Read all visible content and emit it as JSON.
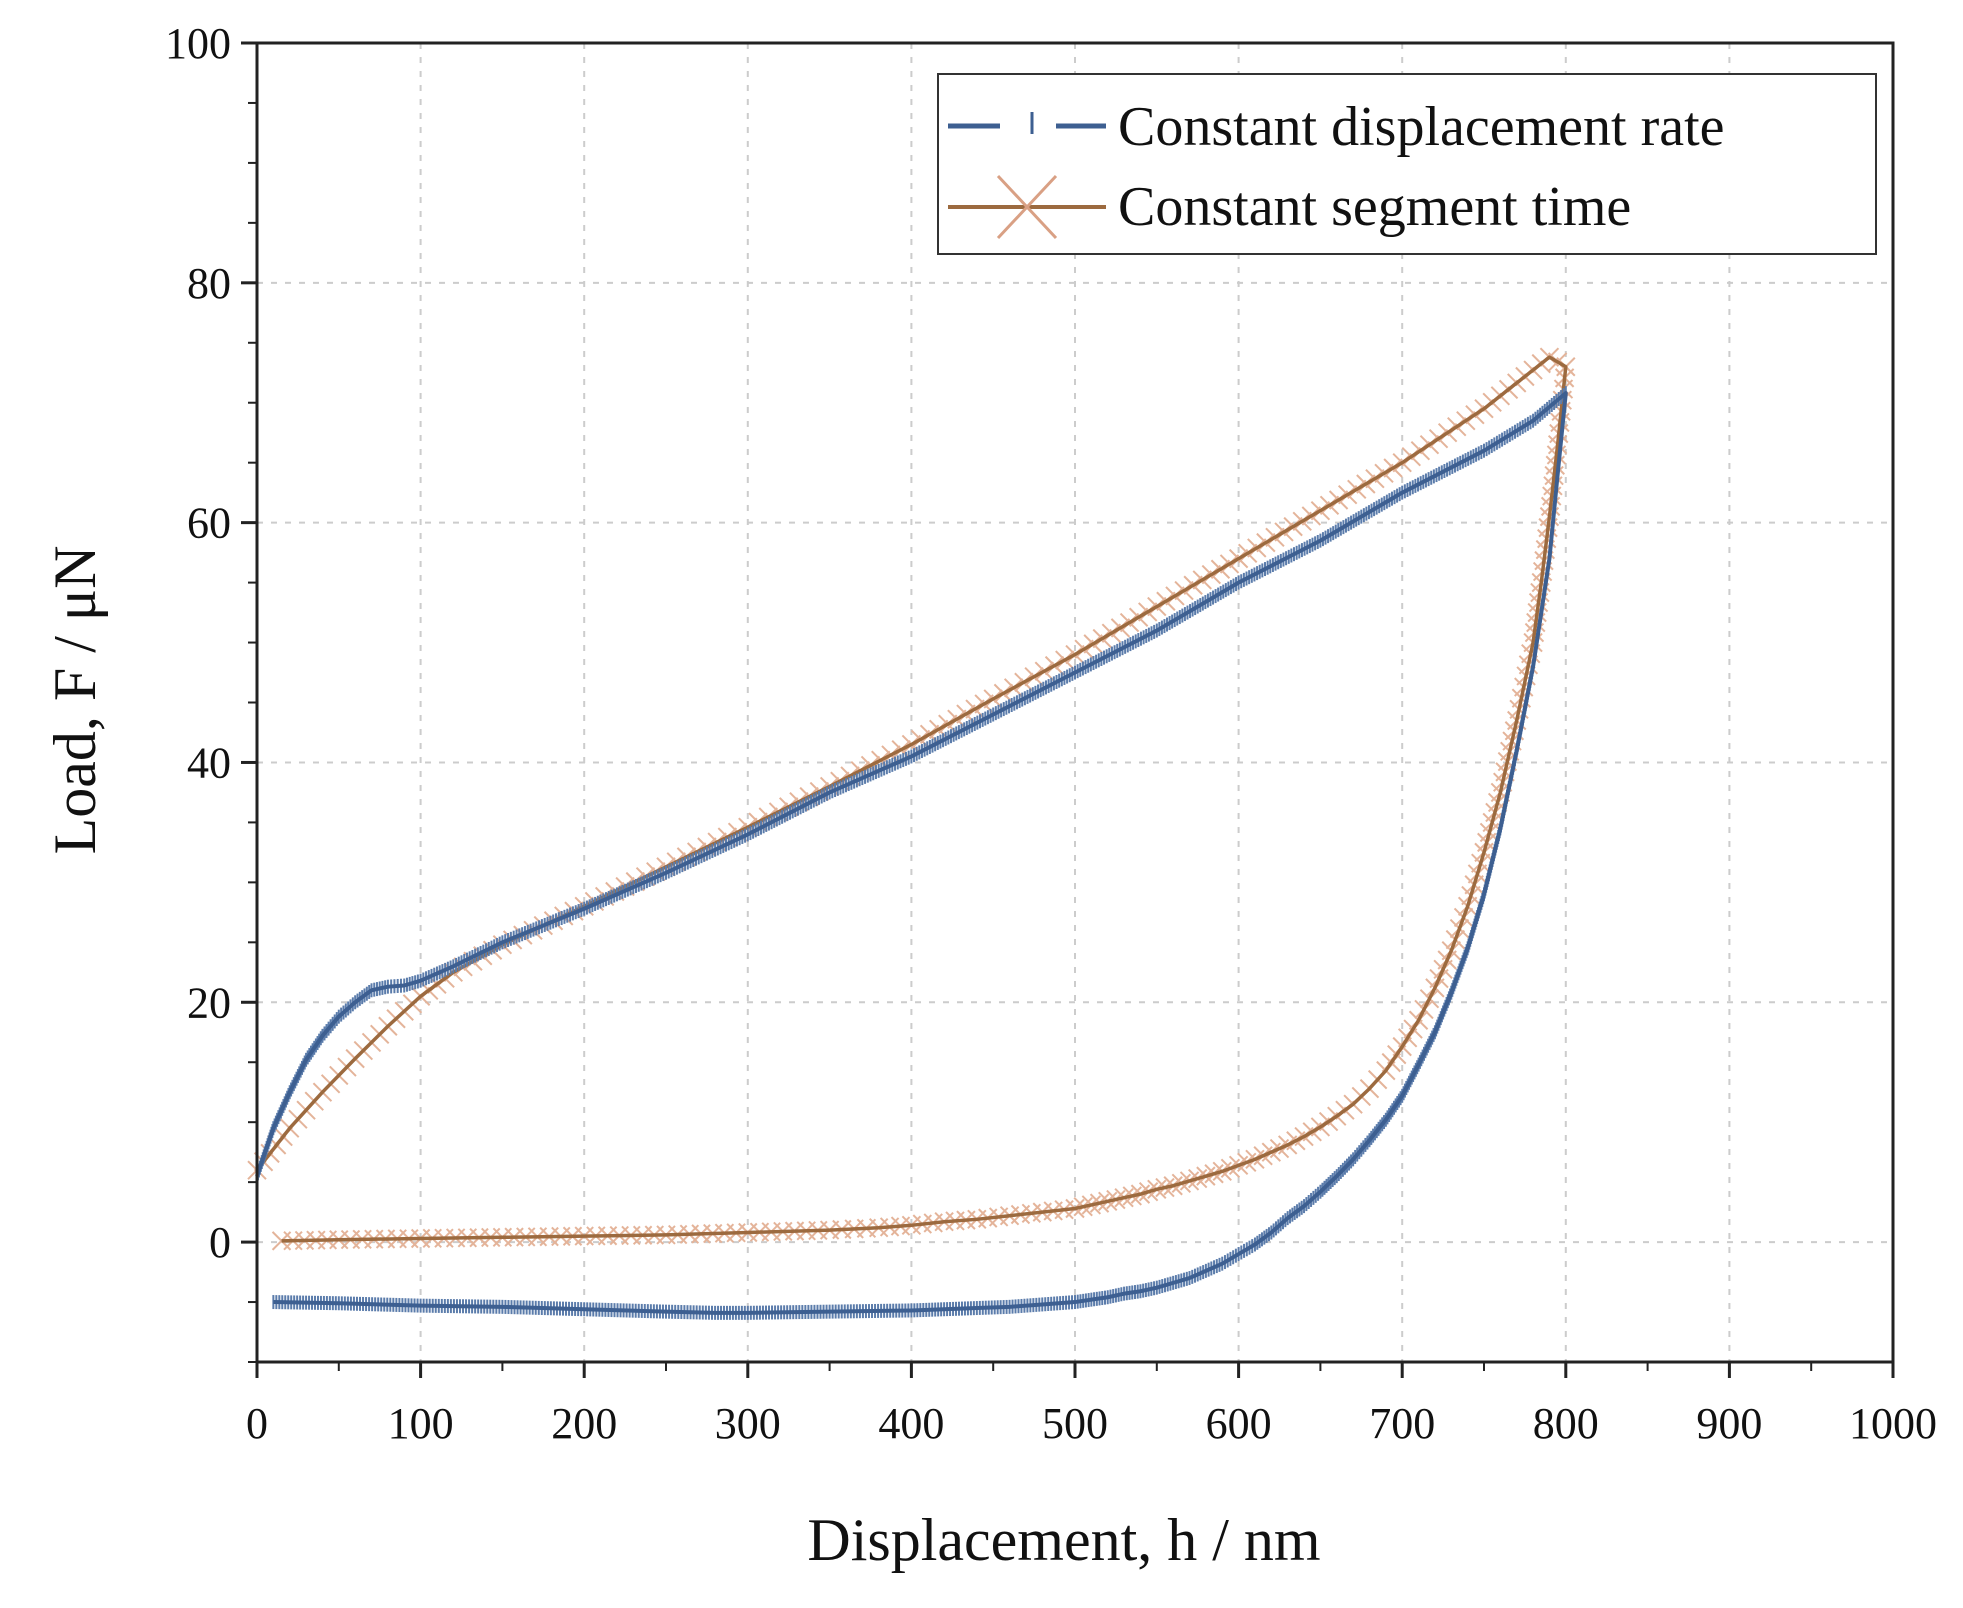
{
  "chart_data": {
    "type": "line",
    "title": "",
    "xlabel": "Displacement, h / nm",
    "ylabel": "Load, F / μN",
    "xlim": [
      0,
      1000
    ],
    "ylim": [
      -10,
      100
    ],
    "xticks": [
      0,
      100,
      200,
      300,
      400,
      500,
      600,
      700,
      800,
      900,
      1000
    ],
    "yticks": [
      0,
      20,
      40,
      60,
      80,
      100
    ],
    "grid": true,
    "legend_position": "top-right",
    "series": [
      {
        "name": "Constant displacement rate",
        "color": "#3d5f91",
        "marker": "dash",
        "x": [
          0,
          10,
          20,
          30,
          40,
          50,
          60,
          70,
          80,
          90,
          100,
          120,
          150,
          200,
          250,
          300,
          350,
          400,
          450,
          500,
          550,
          600,
          650,
          700,
          750,
          780,
          800,
          795,
          790,
          780,
          770,
          760,
          750,
          740,
          730,
          720,
          710,
          700,
          690,
          680,
          670,
          660,
          650,
          640,
          630,
          620,
          610,
          600,
          590,
          580,
          570,
          560,
          550,
          540,
          530,
          520,
          510,
          500,
          480,
          460,
          440,
          420,
          400,
          350,
          300,
          280,
          250,
          200,
          150,
          100,
          50,
          10
        ],
        "y": [
          5.5,
          9.5,
          12.5,
          15.2,
          17.2,
          18.8,
          20.0,
          21.0,
          21.3,
          21.4,
          21.8,
          23.0,
          25.0,
          27.8,
          30.8,
          34.0,
          37.5,
          40.5,
          44.0,
          47.5,
          51.0,
          55.0,
          58.5,
          62.5,
          66.0,
          68.5,
          70.8,
          64.0,
          57.0,
          48.0,
          41.0,
          34.5,
          29.0,
          24.5,
          20.8,
          17.5,
          14.8,
          12.2,
          10.2,
          8.5,
          6.9,
          5.5,
          4.2,
          3.0,
          2.0,
          0.8,
          -0.2,
          -1.0,
          -1.8,
          -2.4,
          -3.0,
          -3.4,
          -3.8,
          -4.1,
          -4.3,
          -4.6,
          -4.8,
          -5.0,
          -5.2,
          -5.4,
          -5.5,
          -5.6,
          -5.7,
          -5.8,
          -5.9,
          -5.9,
          -5.8,
          -5.6,
          -5.4,
          -5.3,
          -5.1,
          -5.0
        ]
      },
      {
        "name": "Constant segment time",
        "color": "#9c6a3f",
        "marker": "x",
        "x": [
          0,
          20,
          40,
          60,
          80,
          100,
          120,
          150,
          200,
          250,
          300,
          350,
          400,
          450,
          500,
          550,
          600,
          650,
          700,
          750,
          790,
          800,
          795,
          790,
          785,
          780,
          770,
          760,
          750,
          740,
          730,
          720,
          710,
          700,
          690,
          680,
          670,
          660,
          650,
          640,
          630,
          620,
          610,
          600,
          590,
          580,
          570,
          560,
          550,
          540,
          530,
          520,
          510,
          500,
          480,
          460,
          440,
          420,
          400,
          380,
          350,
          300,
          250,
          200,
          150,
          100,
          50,
          15
        ],
        "y": [
          6.0,
          9.5,
          12.5,
          15.3,
          18.0,
          20.5,
          22.5,
          24.8,
          28.0,
          31.3,
          34.6,
          38.0,
          41.5,
          45.3,
          49.0,
          53.0,
          57.0,
          61.0,
          65.0,
          69.5,
          73.8,
          73.0,
          66.5,
          60.5,
          55.0,
          50.0,
          43.5,
          37.5,
          32.5,
          28.0,
          24.3,
          21.2,
          18.5,
          16.3,
          14.3,
          12.8,
          11.5,
          10.5,
          9.6,
          8.8,
          8.1,
          7.5,
          6.9,
          6.4,
          5.9,
          5.5,
          5.1,
          4.7,
          4.4,
          4.0,
          3.7,
          3.4,
          3.1,
          2.8,
          2.5,
          2.2,
          1.9,
          1.7,
          1.4,
          1.2,
          1.0,
          0.8,
          0.6,
          0.5,
          0.4,
          0.3,
          0.2,
          0.1
        ]
      }
    ]
  }
}
